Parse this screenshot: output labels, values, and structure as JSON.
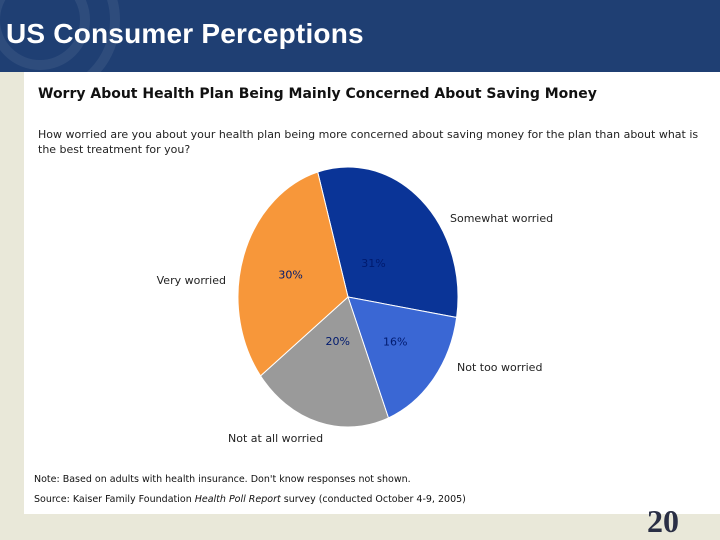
{
  "slide": {
    "title": "US Consumer Perceptions",
    "page_number": "20"
  },
  "colors": {
    "header": "#1f3f73",
    "somewhat_worried": "#0a3497",
    "not_too_worried": "#3a67d4",
    "not_at_all_worried": "#9a9a9a",
    "very_worried": "#f7973a",
    "pct_label": "#001a6e"
  },
  "chart_data": {
    "type": "pie",
    "title": "Worry About Health Plan Being Mainly Concerned About Saving Money",
    "subtitle": "How worried are you about your health plan being more concerned about saving money for the plan than about what is the best treatment for you?",
    "slices": [
      {
        "label": "Somewhat worried",
        "value": 31,
        "value_label": "31%"
      },
      {
        "label": "Not too worried",
        "value": 16,
        "value_label": "16%"
      },
      {
        "label": "Not at all worried",
        "value": 20,
        "value_label": "20%"
      },
      {
        "label": "Very worried",
        "value": 30,
        "value_label": "30%"
      }
    ],
    "note": "Note: Based on adults with health insurance.  Don't know responses not shown.",
    "source_prefix": "Source: Kaiser Family Foundation ",
    "source_italic": "Health Poll Report",
    "source_suffix": " survey (conducted October 4-9, 2005)"
  }
}
